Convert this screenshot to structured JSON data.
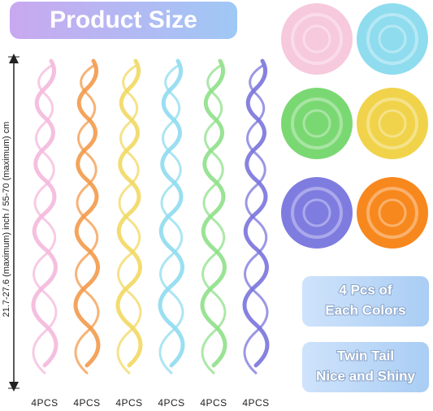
{
  "header": {
    "title": "Product Size"
  },
  "dimension": {
    "label": "21.7-27.6 (maximum) inch / 55-70 (maximum) cm"
  },
  "swirls": [
    {
      "label": "4PCS"
    },
    {
      "label": "4PCS"
    },
    {
      "label": "4PCS"
    },
    {
      "label": "4PCS"
    },
    {
      "label": "4PCS"
    },
    {
      "label": "4PCS"
    }
  ],
  "badges": [
    {
      "lines": [
        "4 Pcs of",
        "Each Colors"
      ]
    },
    {
      "lines": [
        "Twin Tail",
        "Nice and Shiny"
      ]
    }
  ]
}
